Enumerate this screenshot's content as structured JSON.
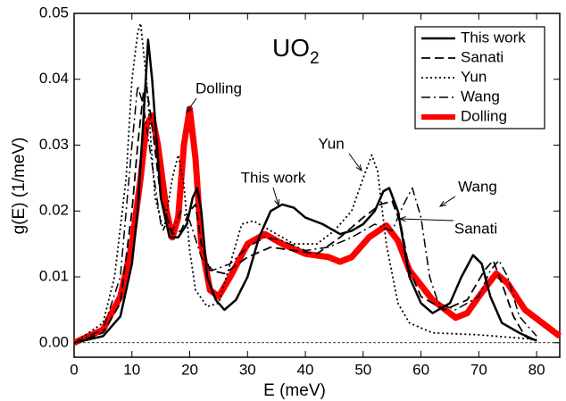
{
  "chart_data": {
    "type": "line",
    "title": "UO",
    "title_subscript": "2",
    "x_label": "E (meV)",
    "y_label": "g(E) (1/meV)",
    "xlim": [
      0,
      84
    ],
    "ylim": [
      -0.0022,
      0.05
    ],
    "xticks": [
      0,
      10,
      20,
      30,
      40,
      50,
      60,
      70,
      80
    ],
    "yticks": [
      {
        "value": 0,
        "label": "0.00"
      },
      0.01,
      0.02,
      0.03,
      0.04,
      0.05
    ],
    "legend": "upper right",
    "series": [
      {
        "name": "This work",
        "color": "#000000",
        "dash": "solid",
        "width": 2.5,
        "x": [
          0,
          5,
          8,
          10,
          11,
          12,
          12.8,
          13.5,
          15,
          16.5,
          18,
          19.5,
          20.5,
          21.3,
          22,
          23,
          24.5,
          26,
          28,
          30,
          32,
          34,
          36,
          38,
          40,
          43,
          46,
          48,
          50,
          52,
          53.5,
          54.5,
          56,
          58,
          60,
          62,
          65,
          67,
          69,
          70.5,
          72,
          74,
          77,
          80
        ],
        "values": [
          0,
          0.001,
          0.004,
          0.012,
          0.02,
          0.034,
          0.046,
          0.04,
          0.022,
          0.016,
          0.016,
          0.018,
          0.022,
          0.0235,
          0.02,
          0.01,
          0.0065,
          0.005,
          0.0065,
          0.01,
          0.016,
          0.02,
          0.021,
          0.0205,
          0.019,
          0.018,
          0.0165,
          0.017,
          0.018,
          0.02,
          0.023,
          0.0235,
          0.02,
          0.01,
          0.006,
          0.0045,
          0.006,
          0.01,
          0.0133,
          0.012,
          0.007,
          0.003,
          0.0015,
          0.0003
        ]
      },
      {
        "name": "Sanati",
        "color": "#000000",
        "dash": "dashed",
        "width": 1.8,
        "x": [
          0,
          5,
          8,
          10,
          11,
          12,
          12.5,
          13.5,
          15,
          17,
          18.5,
          20,
          21,
          22,
          23.5,
          26,
          30,
          34,
          38,
          42,
          46,
          50,
          53,
          55,
          56.5,
          58,
          60,
          64,
          68,
          71,
          72.5,
          74,
          76,
          78,
          80
        ],
        "values": [
          0,
          0.0015,
          0.006,
          0.02,
          0.03,
          0.038,
          0.039,
          0.033,
          0.022,
          0.0165,
          0.017,
          0.02,
          0.021,
          0.015,
          0.011,
          0.0105,
          0.013,
          0.0145,
          0.014,
          0.0135,
          0.016,
          0.019,
          0.021,
          0.0215,
          0.018,
          0.011,
          0.007,
          0.005,
          0.0065,
          0.011,
          0.0125,
          0.009,
          0.004,
          0.001,
          0.0001
        ]
      },
      {
        "name": "Yun",
        "color": "#000000",
        "dash": "dotted",
        "width": 1.8,
        "x": [
          0,
          5,
          7,
          9,
          10,
          11,
          11.5,
          12.5,
          14,
          15.5,
          17,
          18,
          19,
          20,
          21,
          23,
          25,
          27,
          29,
          31,
          34,
          38,
          42,
          45,
          48,
          50,
          51.5,
          52.5,
          54,
          56,
          58,
          62,
          70,
          80
        ],
        "values": [
          0,
          0.003,
          0.01,
          0.025,
          0.04,
          0.047,
          0.0485,
          0.04,
          0.022,
          0.017,
          0.025,
          0.0285,
          0.024,
          0.014,
          0.008,
          0.0055,
          0.006,
          0.012,
          0.018,
          0.0185,
          0.017,
          0.015,
          0.015,
          0.017,
          0.02,
          0.025,
          0.0285,
          0.026,
          0.015,
          0.006,
          0.003,
          0.0015,
          0.0012,
          0.0005
        ]
      },
      {
        "name": "Wang",
        "color": "#000000",
        "dash": "dashdot",
        "width": 1.5,
        "x": [
          0,
          5,
          8,
          10,
          11,
          12,
          13,
          15,
          17,
          18.5,
          20,
          22,
          24,
          27,
          30,
          33,
          36,
          40,
          44,
          48,
          52,
          55,
          57,
          58.5,
          60,
          61.5,
          63,
          66,
          70,
          72,
          73.5,
          75,
          77,
          80
        ],
        "values": [
          0,
          0.002,
          0.01,
          0.03,
          0.039,
          0.036,
          0.03,
          0.018,
          0.017,
          0.02,
          0.0185,
          0.013,
          0.011,
          0.012,
          0.0145,
          0.016,
          0.0155,
          0.014,
          0.0145,
          0.016,
          0.018,
          0.017,
          0.021,
          0.0235,
          0.019,
          0.01,
          0.006,
          0.005,
          0.007,
          0.011,
          0.0125,
          0.01,
          0.004,
          0.001
        ]
      },
      {
        "name": "Dolling",
        "color": "#ff0000",
        "dash": "solid",
        "width": 7,
        "x": [
          0,
          5,
          8,
          10,
          11.5,
          12.5,
          13.5,
          14.5,
          16,
          17,
          18,
          19,
          20,
          21,
          22,
          23.5,
          25,
          27,
          30,
          33,
          36,
          40,
          44,
          46,
          48,
          51,
          54,
          56,
          58,
          62,
          66,
          68,
          70,
          73,
          75,
          78,
          84
        ],
        "values": [
          0,
          0.002,
          0.007,
          0.015,
          0.025,
          0.033,
          0.0345,
          0.03,
          0.02,
          0.016,
          0.019,
          0.03,
          0.0355,
          0.028,
          0.015,
          0.008,
          0.007,
          0.01,
          0.015,
          0.0165,
          0.015,
          0.0135,
          0.013,
          0.0123,
          0.013,
          0.016,
          0.0178,
          0.0155,
          0.011,
          0.0065,
          0.0038,
          0.0045,
          0.007,
          0.0105,
          0.009,
          0.005,
          0.001
        ]
      }
    ],
    "annotations": [
      "Dolling",
      "This work",
      "Yun",
      "Wang",
      "Sanati"
    ]
  }
}
